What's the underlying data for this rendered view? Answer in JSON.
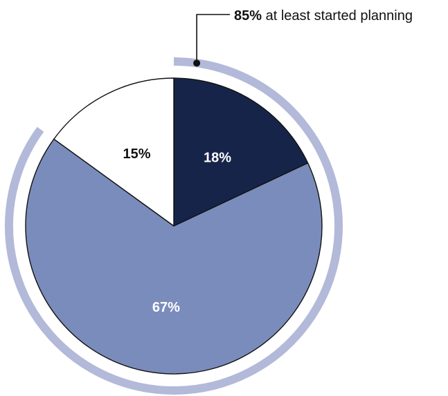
{
  "chart_data": {
    "type": "pie",
    "start_angle_deg": 0,
    "direction": "clockwise",
    "slices": [
      {
        "label": "18%",
        "value": 18,
        "color": "#17244a",
        "label_color": "#ffffff"
      },
      {
        "label": "67%",
        "value": 67,
        "color": "#7a8cbb",
        "label_color": "#ffffff"
      },
      {
        "label": "15%",
        "value": 15,
        "color": "#ffffff",
        "label_color": "#111111"
      }
    ],
    "highlight_arc": {
      "covers_value": 85,
      "color": "#b3b9d8",
      "callout": {
        "value_text": "85%",
        "text": " at least started planning"
      }
    },
    "stroke_color": "#111111"
  }
}
